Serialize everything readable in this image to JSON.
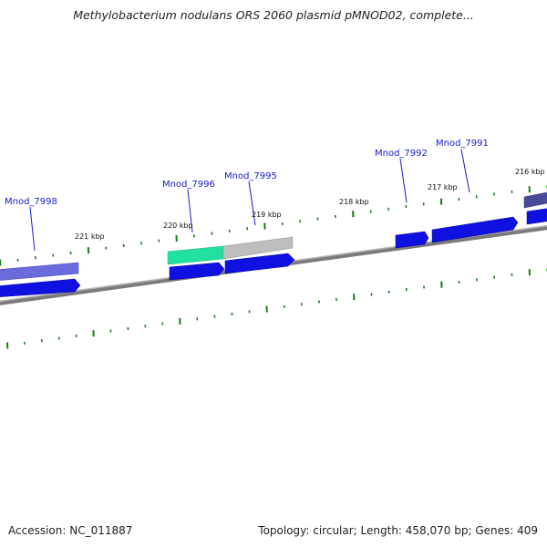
{
  "header": {
    "title": "Methylobacterium nodulans ORS 2060 plasmid pMNOD02, complete..."
  },
  "footer": {
    "accession": "Accession: NC_011887",
    "summary": "Topology: circular; Length: 458,070 bp; Genes: 409"
  },
  "map": {
    "topology": "circular",
    "length_bp": 458070,
    "visible_range_kbp": [
      216,
      221
    ],
    "kbp_labels": [
      "216 kbp",
      "217 kbp",
      "218 kbp",
      "219 kbp",
      "220 kbp",
      "221 kbp"
    ],
    "gene_labels": [
      "Mnod_7991",
      "Mnod_7992",
      "Mnod_7995",
      "Mnod_7996",
      "Mnod_7998"
    ],
    "colors": {
      "cds": "#1010e0",
      "cds_highlight": "#6b6bdc",
      "rna_green": "#22e0a0",
      "rna_gray": "#bbbbbb",
      "backbone": "#808080",
      "tick": "#1b7a1b",
      "label": "#1a1acc"
    }
  }
}
